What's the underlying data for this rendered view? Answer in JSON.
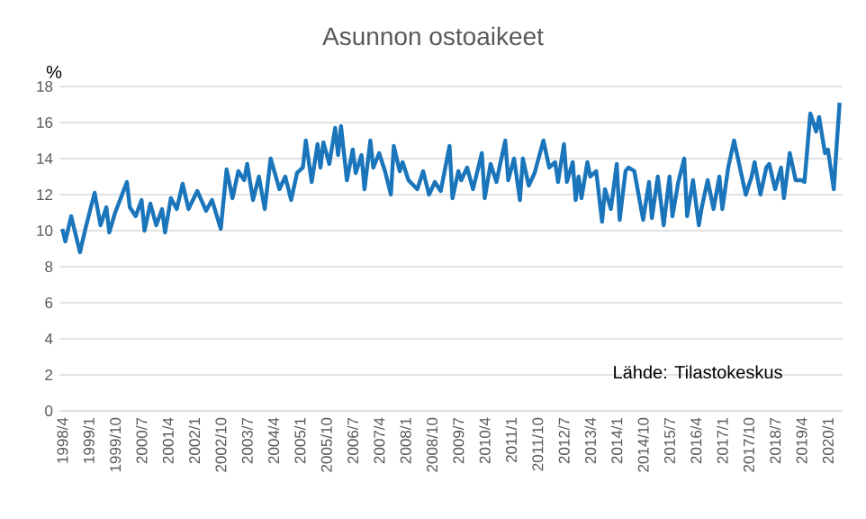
{
  "chart_data": {
    "type": "line",
    "title": "Asunnon ostoaikeet",
    "ylabel": "%",
    "annotations": [
      "Lähde: Tilastokeskus"
    ],
    "series": [
      {
        "color": "#1a75bb",
        "x": [
          "1998-04",
          "1998-05",
          "1998-07",
          "1998-10",
          "1998-12",
          "1999-03",
          "1999-05",
          "1999-07",
          "1999-08",
          "1999-10",
          "2000-02",
          "2000-03",
          "2000-05",
          "2000-07",
          "2000-08",
          "2000-10",
          "2000-12",
          "2001-02",
          "2001-03",
          "2001-05",
          "2001-07",
          "2001-09",
          "2001-11",
          "2002-02",
          "2002-05",
          "2002-07",
          "2002-10",
          "2002-12",
          "2003-02",
          "2003-04",
          "2003-06",
          "2003-07",
          "2003-09",
          "2003-11",
          "2004-01",
          "2004-03",
          "2004-06",
          "2004-08",
          "2004-10",
          "2004-12",
          "2005-02",
          "2005-03",
          "2005-05",
          "2005-07",
          "2005-08",
          "2005-09",
          "2005-11",
          "2006-01",
          "2006-02",
          "2006-03",
          "2006-05",
          "2006-07",
          "2006-08",
          "2006-10",
          "2006-11",
          "2007-01",
          "2007-02",
          "2007-04",
          "2007-06",
          "2007-08",
          "2007-09",
          "2007-11",
          "2007-12",
          "2008-02",
          "2008-05",
          "2008-07",
          "2008-09",
          "2008-11",
          "2009-01",
          "2009-04",
          "2009-05",
          "2009-07",
          "2009-08",
          "2009-10",
          "2009-12",
          "2010-03",
          "2010-04",
          "2010-06",
          "2010-08",
          "2010-09",
          "2010-11",
          "2010-12",
          "2011-02",
          "2011-04",
          "2011-05",
          "2011-07",
          "2011-09",
          "2011-12",
          "2012-02",
          "2012-04",
          "2012-05",
          "2012-07",
          "2012-08",
          "2012-10",
          "2012-11",
          "2012-12",
          "2013-01",
          "2013-03",
          "2013-04",
          "2013-06",
          "2013-08",
          "2013-09",
          "2013-11",
          "2014-01",
          "2014-02",
          "2014-04",
          "2014-05",
          "2014-07",
          "2014-10",
          "2014-12",
          "2015-01",
          "2015-03",
          "2015-05",
          "2015-07",
          "2015-08",
          "2015-10",
          "2015-12",
          "2016-01",
          "2016-03",
          "2016-05",
          "2016-06",
          "2016-08",
          "2016-10",
          "2016-12",
          "2017-01",
          "2017-03",
          "2017-05",
          "2017-09",
          "2017-11",
          "2017-12",
          "2018-02",
          "2018-04",
          "2018-05",
          "2018-07",
          "2018-09",
          "2018-10",
          "2018-12",
          "2019-02",
          "2019-04",
          "2019-05",
          "2019-07",
          "2019-09",
          "2019-10",
          "2019-12",
          "2020-01",
          "2020-03",
          "2020-04",
          "2020-05"
        ],
        "values": [
          10.1,
          9.4,
          10.8,
          8.8,
          10.2,
          12.1,
          10.3,
          11.3,
          9.9,
          11.0,
          12.7,
          11.3,
          10.8,
          11.7,
          10.0,
          11.5,
          10.3,
          11.2,
          9.9,
          11.8,
          11.2,
          12.6,
          11.2,
          12.2,
          11.1,
          11.7,
          10.1,
          13.4,
          11.8,
          13.3,
          12.8,
          13.7,
          11.7,
          13.0,
          11.2,
          14.0,
          12.3,
          13.0,
          11.7,
          13.2,
          13.5,
          15.0,
          12.7,
          14.8,
          13.5,
          14.9,
          13.7,
          15.7,
          14.2,
          15.8,
          12.8,
          14.5,
          13.2,
          14.2,
          12.3,
          15.0,
          13.5,
          14.3,
          13.3,
          12.0,
          14.7,
          13.3,
          13.8,
          12.8,
          12.3,
          13.3,
          12.0,
          12.7,
          12.2,
          14.7,
          11.8,
          13.3,
          12.8,
          13.5,
          12.3,
          14.3,
          11.8,
          13.7,
          12.7,
          13.5,
          15.0,
          12.8,
          14.0,
          11.7,
          14.0,
          12.5,
          13.2,
          15.0,
          13.5,
          13.8,
          12.7,
          14.8,
          12.7,
          13.8,
          11.7,
          13.0,
          11.8,
          13.8,
          13.0,
          13.3,
          10.5,
          12.3,
          11.2,
          13.7,
          10.6,
          13.3,
          13.5,
          13.3,
          10.6,
          12.7,
          10.7,
          13.0,
          10.3,
          13.0,
          10.8,
          12.7,
          14.0,
          10.8,
          12.8,
          10.3,
          11.3,
          12.8,
          11.2,
          13.0,
          11.2,
          13.5,
          15.0,
          12.0,
          13.0,
          13.8,
          12.0,
          13.5,
          13.7,
          12.3,
          13.5,
          11.8,
          14.3,
          12.8,
          12.8,
          12.7,
          16.5,
          15.5,
          16.3,
          14.3,
          14.5,
          12.3,
          14.8,
          17.1
        ]
      }
    ],
    "xlim": [
      "1998-03",
      "2020-06"
    ],
    "xticks": [
      {
        "value": "1998-04",
        "label": "1998/4"
      },
      {
        "value": "1999-01",
        "label": "1999/1"
      },
      {
        "value": "1999-10",
        "label": "1999/10"
      },
      {
        "value": "2000-07",
        "label": "2000/7"
      },
      {
        "value": "2001-04",
        "label": "2001/4"
      },
      {
        "value": "2002-01",
        "label": "2002/1"
      },
      {
        "value": "2002-10",
        "label": "2002/10"
      },
      {
        "value": "2003-07",
        "label": "2003/7"
      },
      {
        "value": "2004-04",
        "label": "2004/4"
      },
      {
        "value": "2005-01",
        "label": "2005/1"
      },
      {
        "value": "2005-10",
        "label": "2005/10"
      },
      {
        "value": "2006-07",
        "label": "2006/7"
      },
      {
        "value": "2007-04",
        "label": "2007/4"
      },
      {
        "value": "2008-01",
        "label": "2008/1"
      },
      {
        "value": "2008-10",
        "label": "2008/10"
      },
      {
        "value": "2009-07",
        "label": "2009/7"
      },
      {
        "value": "2010-04",
        "label": "2010/4"
      },
      {
        "value": "2011-01",
        "label": "2011/1"
      },
      {
        "value": "2011-10",
        "label": "2011/10"
      },
      {
        "value": "2012-07",
        "label": "2012/7"
      },
      {
        "value": "2013-04",
        "label": "2013/4"
      },
      {
        "value": "2014-01",
        "label": "2014/1"
      },
      {
        "value": "2014-10",
        "label": "2014/10"
      },
      {
        "value": "2015-07",
        "label": "2015/7"
      },
      {
        "value": "2016-04",
        "label": "2016/4"
      },
      {
        "value": "2017-01",
        "label": "2017/1"
      },
      {
        "value": "2017-10",
        "label": "2017/10"
      },
      {
        "value": "2018-07",
        "label": "2018/7"
      },
      {
        "value": "2019-04",
        "label": "2019/4"
      },
      {
        "value": "2020-01",
        "label": "2020/1"
      }
    ],
    "ylim": [
      0,
      18
    ],
    "yticks": [
      0,
      2,
      4,
      6,
      8,
      10,
      12,
      14,
      16,
      18
    ],
    "grid": "y",
    "legend": false,
    "marker": "none",
    "line_style": "solid"
  }
}
